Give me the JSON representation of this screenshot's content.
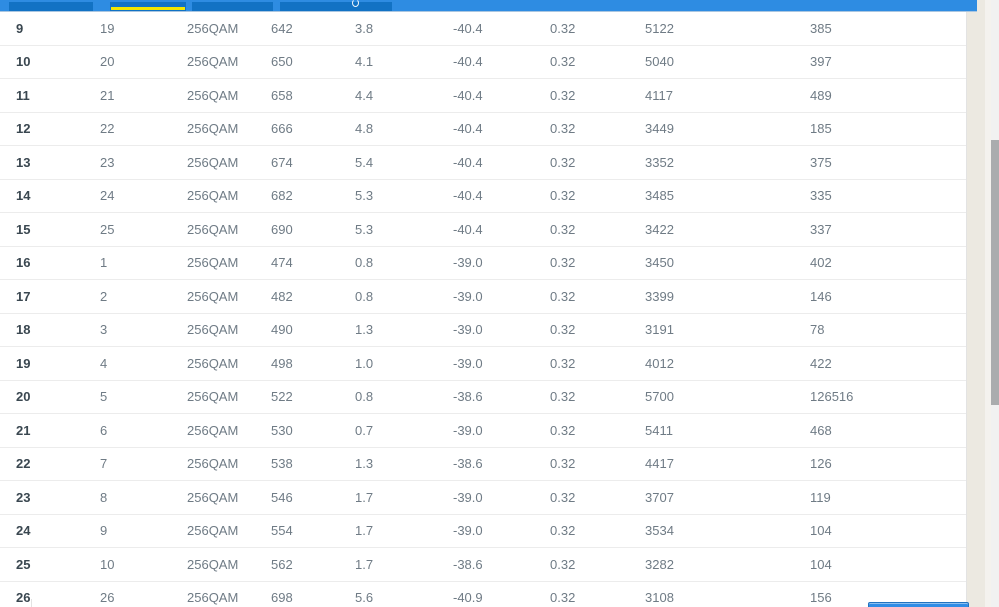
{
  "header": {
    "bar_color": "#2e8ce2",
    "tab_color": "#1272c4",
    "active_tab_indicator_color": "#f3e600",
    "tabs": [
      {
        "label": "",
        "active": false
      },
      {
        "label": "",
        "active": true
      },
      {
        "label": "",
        "active": false
      },
      {
        "label": "",
        "active": false
      }
    ]
  },
  "table": {
    "modulation_value": "256QAM",
    "rows": [
      [
        "9",
        "19",
        "256QAM",
        "642",
        "3.8",
        "-40.4",
        "0.32",
        "5122",
        "385"
      ],
      [
        "10",
        "20",
        "256QAM",
        "650",
        "4.1",
        "-40.4",
        "0.32",
        "5040",
        "397"
      ],
      [
        "11",
        "21",
        "256QAM",
        "658",
        "4.4",
        "-40.4",
        "0.32",
        "4117",
        "489"
      ],
      [
        "12",
        "22",
        "256QAM",
        "666",
        "4.8",
        "-40.4",
        "0.32",
        "3449",
        "185"
      ],
      [
        "13",
        "23",
        "256QAM",
        "674",
        "5.4",
        "-40.4",
        "0.32",
        "3352",
        "375"
      ],
      [
        "14",
        "24",
        "256QAM",
        "682",
        "5.3",
        "-40.4",
        "0.32",
        "3485",
        "335"
      ],
      [
        "15",
        "25",
        "256QAM",
        "690",
        "5.3",
        "-40.4",
        "0.32",
        "3422",
        "337"
      ],
      [
        "16",
        "1",
        "256QAM",
        "474",
        "0.8",
        "-39.0",
        "0.32",
        "3450",
        "402"
      ],
      [
        "17",
        "2",
        "256QAM",
        "482",
        "0.8",
        "-39.0",
        "0.32",
        "3399",
        "146"
      ],
      [
        "18",
        "3",
        "256QAM",
        "490",
        "1.3",
        "-39.0",
        "0.32",
        "3191",
        "78"
      ],
      [
        "19",
        "4",
        "256QAM",
        "498",
        "1.0",
        "-39.0",
        "0.32",
        "4012",
        "422"
      ],
      [
        "20",
        "5",
        "256QAM",
        "522",
        "0.8",
        "-38.6",
        "0.32",
        "5700",
        "126516"
      ],
      [
        "21",
        "6",
        "256QAM",
        "530",
        "0.7",
        "-39.0",
        "0.32",
        "5411",
        "468"
      ],
      [
        "22",
        "7",
        "256QAM",
        "538",
        "1.3",
        "-38.6",
        "0.32",
        "4417",
        "126"
      ],
      [
        "23",
        "8",
        "256QAM",
        "546",
        "1.7",
        "-39.0",
        "0.32",
        "3707",
        "119"
      ],
      [
        "24",
        "9",
        "256QAM",
        "554",
        "1.7",
        "-39.0",
        "0.32",
        "3534",
        "104"
      ],
      [
        "25",
        "10",
        "256QAM",
        "562",
        "1.7",
        "-38.6",
        "0.32",
        "3282",
        "104"
      ],
      [
        "26",
        "26",
        "256QAM",
        "698",
        "5.6",
        "-40.9",
        "0.32",
        "3108",
        "156"
      ]
    ]
  },
  "footer": {
    "button_color": "#2f8de6"
  },
  "scrollbar": {
    "thumb_color": "#aaacae",
    "track_color": "#f1f1f1"
  }
}
